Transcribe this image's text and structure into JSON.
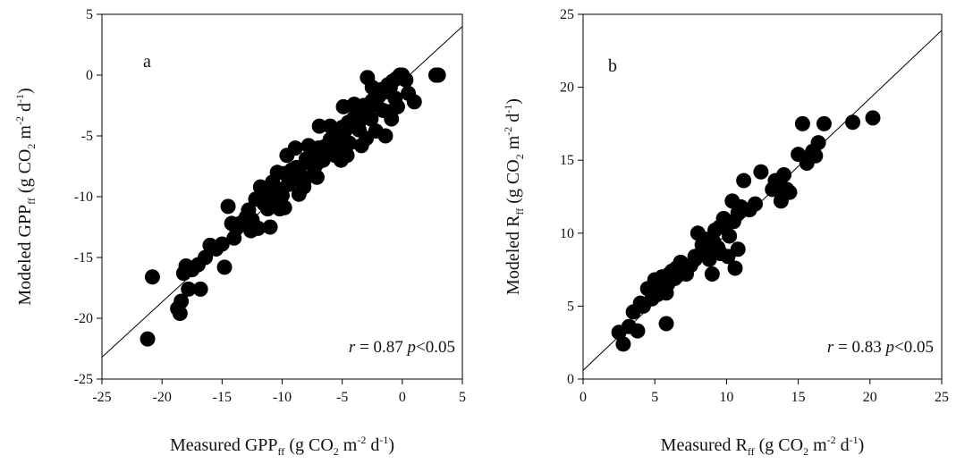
{
  "chart_data": [
    {
      "type": "scatter",
      "panel_label": "a",
      "xlabel": "Measured GPP_ff (g CO_2 m^-2 d^-1)",
      "ylabel": "Modeled GPP_ff (g CO_2 m^-2 d^-1)",
      "xlabel_parts": {
        "pre": "Measured GPP",
        "sub": "ff",
        "mid1": " (g CO",
        "sub2": "2",
        "mid2": " m",
        "sup1": "-2",
        "mid3": " d",
        "sup2": "-1",
        "post": ")"
      },
      "ylabel_parts": {
        "pre": "Modeled GPP",
        "sub": "ff",
        "mid1": " (g CO",
        "sub2": "2",
        "mid2": " m",
        "sup1": "-2",
        "mid3": " d",
        "sup2": "-1",
        "post": ")"
      },
      "xlim": [
        -25,
        5
      ],
      "ylim": [
        -25,
        5
      ],
      "xticks": [
        -25,
        -20,
        -15,
        -10,
        -5,
        0,
        5
      ],
      "yticks": [
        -25,
        -20,
        -15,
        -10,
        -5,
        0,
        5
      ],
      "xtick_labels": [
        "-25",
        "-20",
        "-15",
        "-10",
        "-5",
        "0",
        "5"
      ],
      "ytick_labels": [
        "-25",
        "-20",
        "-15",
        "-10",
        "-5",
        "0",
        "5"
      ],
      "grid": false,
      "annotation": {
        "r_label": "r",
        "r_value": " = 0.87",
        "p_label": "p",
        "p_value": "<0.05"
      },
      "line": {
        "x": [
          -25,
          5
        ],
        "y": [
          -23.2,
          4
        ]
      },
      "x": [
        -21.2,
        -20.8,
        -18.7,
        -18.5,
        -18.4,
        -18.2,
        -18.0,
        -17.8,
        -17.5,
        -17.0,
        -16.8,
        -16.4,
        -16.0,
        -15.5,
        -15.0,
        -14.8,
        -14.5,
        -14.0,
        -13.5,
        -13.0,
        -12.8,
        -12.5,
        -12.2,
        -12.0,
        -11.8,
        -11.5,
        -11.2,
        -11.0,
        -10.8,
        -10.5,
        -10.2,
        -10.0,
        -9.8,
        -9.5,
        -9.2,
        -9.0,
        -8.8,
        -8.5,
        -8.2,
        -8.0,
        -7.8,
        -7.5,
        -7.2,
        -7.0,
        -6.8,
        -6.5,
        -6.2,
        -6.0,
        -5.8,
        -5.5,
        -5.2,
        -5.0,
        -4.8,
        -4.5,
        -4.2,
        -4.0,
        -3.8,
        -3.5,
        -3.2,
        -3.0,
        -2.8,
        -2.5,
        -2.2,
        -2.0,
        -1.8,
        -1.5,
        -1.2,
        -1.0,
        -0.8,
        -0.5,
        -0.2,
        0.0,
        0.3,
        0.5,
        1.0,
        2.8,
        3.0,
        -14.2,
        -13.8,
        -11.0,
        -10.2,
        -9.8,
        -8.6,
        -7.4,
        -6.6,
        -5.6,
        -4.4,
        -3.6,
        -2.6,
        -1.6,
        -0.6,
        -6.0,
        -4.0,
        -2.5,
        -3.0,
        -1.0,
        -0.4,
        -7.8,
        -9.6,
        -8.2,
        -10.4,
        -11.6,
        -12.6,
        -5.2,
        -4.6,
        -3.4,
        -2.2,
        -1.4,
        -0.9,
        -2.9,
        -4.9,
        -6.9,
        -8.9,
        -9.1,
        -7.1,
        -5.1,
        -3.1
      ],
      "y": [
        -21.7,
        -16.6,
        -19.2,
        -19.6,
        -18.6,
        -16.3,
        -15.7,
        -17.6,
        -16.0,
        -15.6,
        -17.6,
        -15.0,
        -14.0,
        -14.3,
        -13.9,
        -15.8,
        -10.8,
        -13.4,
        -12.2,
        -11.7,
        -11.1,
        -11.9,
        -10.2,
        -12.6,
        -9.2,
        -10.6,
        -11.0,
        -9.6,
        -8.8,
        -10.1,
        -9.4,
        -9.9,
        -8.1,
        -9.0,
        -7.8,
        -8.6,
        -7.6,
        -8.2,
        -8.8,
        -6.9,
        -7.2,
        -6.5,
        -7.4,
        -6.0,
        -6.6,
        -5.9,
        -6.3,
        -5.3,
        -5.5,
        -5.0,
        -4.8,
        -4.3,
        -4.6,
        -3.9,
        -4.2,
        -3.5,
        -3.2,
        -3.7,
        -2.5,
        -3.0,
        -2.8,
        -2.1,
        -2.3,
        -1.8,
        -1.2,
        -1.4,
        -0.8,
        -1.0,
        -0.5,
        -0.3,
        0.0,
        0.0,
        -0.4,
        -1.5,
        -2.2,
        0.0,
        0.0,
        -12.2,
        -12.6,
        -12.5,
        -11.0,
        -10.9,
        -9.8,
        -8.2,
        -7.0,
        -6.6,
        -5.6,
        -4.5,
        -3.6,
        -2.9,
        -1.9,
        -4.2,
        -2.4,
        -1.0,
        -5.2,
        -3.0,
        -2.6,
        -5.8,
        -6.6,
        -9.2,
        -8.0,
        -10.4,
        -12.8,
        -6.0,
        -6.6,
        -5.8,
        -4.6,
        -5.0,
        -3.6,
        -0.2,
        -2.6,
        -4.2,
        -6.0,
        -8.0,
        -8.4,
        -7.0,
        -3.2
      ]
    },
    {
      "type": "scatter",
      "panel_label": "b",
      "xlabel": "Measured R_ff (g CO_2 m^-2 d^-1)",
      "ylabel": "Modeled R_ff (g CO_2 m^-2 d^-1)",
      "xlabel_parts": {
        "pre": "Measured R",
        "sub": "ff",
        "mid1": " (g CO",
        "sub2": "2",
        "mid2": " m",
        "sup1": "-2",
        "mid3": " d",
        "sup2": "-1",
        "post": ")"
      },
      "ylabel_parts": {
        "pre": "Modeled R",
        "sub": "ff",
        "mid1": " (g CO",
        "sub2": "2",
        "mid2": " m",
        "sup1": "-2",
        "mid3": " d",
        "sup2": "-1",
        "post": ")"
      },
      "xlim": [
        0,
        25
      ],
      "ylim": [
        0,
        25
      ],
      "xticks": [
        0,
        5,
        10,
        15,
        20,
        25
      ],
      "yticks": [
        0,
        5,
        10,
        15,
        20,
        25
      ],
      "xtick_labels": [
        "0",
        "5",
        "10",
        "15",
        "20",
        "25"
      ],
      "ytick_labels": [
        "0",
        "5",
        "10",
        "15",
        "20",
        "25"
      ],
      "grid": false,
      "annotation": {
        "r_label": "r",
        "r_value": " = 0.83",
        "p_label": "p",
        "p_value": "<0.05"
      },
      "line": {
        "x": [
          0,
          25
        ],
        "y": [
          0.6,
          23.9
        ]
      },
      "x": [
        2.5,
        2.8,
        3.2,
        3.5,
        3.8,
        4.0,
        4.2,
        4.5,
        4.8,
        5.0,
        5.2,
        5.3,
        5.5,
        5.6,
        5.8,
        5.9,
        6.0,
        6.1,
        6.2,
        6.4,
        6.5,
        6.6,
        6.8,
        7.0,
        7.2,
        7.5,
        7.8,
        8.0,
        8.2,
        8.3,
        8.5,
        8.6,
        8.8,
        9.0,
        9.1,
        9.2,
        9.4,
        9.5,
        9.6,
        9.8,
        10.0,
        10.1,
        10.2,
        10.4,
        10.5,
        10.6,
        10.8,
        11.0,
        11.2,
        11.6,
        12.0,
        12.4,
        13.2,
        13.4,
        13.6,
        13.8,
        14.0,
        14.2,
        14.4,
        15.0,
        15.3,
        15.6,
        15.8,
        16.0,
        16.2,
        16.4,
        16.8,
        18.8,
        20.2,
        5.8,
        9.0,
        10.8,
        9.8,
        7.8,
        6.8,
        8.8
      ],
      "y": [
        3.2,
        2.4,
        3.6,
        4.6,
        3.3,
        5.2,
        5.0,
        6.2,
        5.5,
        6.8,
        5.8,
        6.4,
        7.0,
        6.6,
        5.9,
        6.5,
        7.2,
        6.8,
        7.4,
        6.9,
        7.6,
        7.1,
        8.0,
        7.5,
        7.2,
        7.8,
        8.2,
        10.0,
        8.6,
        9.2,
        9.6,
        8.8,
        8.2,
        7.2,
        9.4,
        10.2,
        9.0,
        10.4,
        8.6,
        11.0,
        10.6,
        8.4,
        9.8,
        12.2,
        10.8,
        7.6,
        11.4,
        11.8,
        13.6,
        11.6,
        12.0,
        14.2,
        13.0,
        13.6,
        13.2,
        12.2,
        14.0,
        13.0,
        12.8,
        15.4,
        17.5,
        14.8,
        15.2,
        15.6,
        15.3,
        16.2,
        17.5,
        17.6,
        17.9,
        3.8,
        9.6,
        8.9,
        11.0,
        8.4,
        8.0,
        9.0
      ]
    }
  ]
}
